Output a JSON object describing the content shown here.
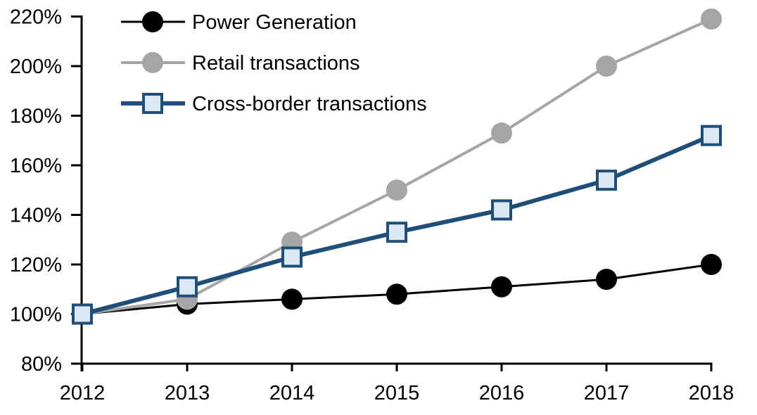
{
  "chart_data": {
    "type": "line",
    "title": "",
    "xlabel": "",
    "ylabel": "",
    "categories": [
      "2012",
      "2013",
      "2014",
      "2015",
      "2016",
      "2017",
      "2018"
    ],
    "series": [
      {
        "name": "Power Generation",
        "values": [
          100,
          104,
          106,
          108,
          111,
          114,
          120
        ],
        "color": "#000000",
        "marker": "circle",
        "marker_fill": "#000000"
      },
      {
        "name": "Retail transactions",
        "values": [
          100,
          106,
          129,
          150,
          173,
          200,
          219
        ],
        "color": "#A5A5A5",
        "marker": "circle",
        "marker_fill": "#A5A5A5"
      },
      {
        "name": "Cross-border transactions",
        "values": [
          100,
          111,
          123,
          133,
          142,
          154,
          172
        ],
        "color": "#1F4E79",
        "marker": "square",
        "marker_fill": "#DCE9F5"
      }
    ],
    "ylim": [
      80,
      220
    ],
    "ytick_step": 20,
    "ytick_labels": [
      "80%",
      "100%",
      "120%",
      "140%",
      "160%",
      "180%",
      "200%",
      "220%"
    ],
    "xtick_labels": [
      "2012",
      "2013",
      "2014",
      "2015",
      "2016",
      "2017",
      "2018"
    ],
    "legend_position": "top-left",
    "grid": false,
    "axis_color": "#000000"
  }
}
